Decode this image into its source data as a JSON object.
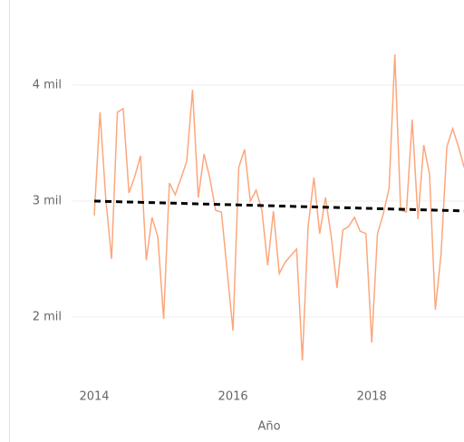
{
  "chart_data": {
    "type": "line",
    "x_label": "Año",
    "x": [
      2014.0,
      2014.083,
      2014.167,
      2014.25,
      2014.333,
      2014.417,
      2014.5,
      2014.583,
      2014.667,
      2014.75,
      2014.833,
      2014.917,
      2015.0,
      2015.083,
      2015.167,
      2015.25,
      2015.333,
      2015.417,
      2015.5,
      2015.583,
      2015.667,
      2015.75,
      2015.833,
      2015.917,
      2016.0,
      2016.083,
      2016.167,
      2016.25,
      2016.333,
      2016.417,
      2016.5,
      2016.583,
      2016.667,
      2016.75,
      2016.833,
      2016.917,
      2017.0,
      2017.083,
      2017.167,
      2017.25,
      2017.333,
      2017.417,
      2017.5,
      2017.583,
      2017.667,
      2017.75,
      2017.833,
      2017.917,
      2018.0,
      2018.083,
      2018.167,
      2018.25,
      2018.333,
      2018.417,
      2018.5,
      2018.583,
      2018.667,
      2018.75,
      2018.833,
      2018.917,
      2019.0,
      2019.083,
      2019.167,
      2019.25,
      2019.333
    ],
    "values": [
      2875,
      3766,
      3015,
      2500,
      3766,
      3797,
      3070,
      3210,
      3390,
      2490,
      2860,
      2690,
      1984,
      3156,
      3055,
      3195,
      3344,
      3960,
      3030,
      3406,
      3195,
      2920,
      2906,
      2390,
      1883,
      3290,
      3445,
      3000,
      3094,
      2920,
      2445,
      2914,
      2375,
      2470,
      2530,
      2586,
      1625,
      2780,
      3203,
      2719,
      3030,
      2690,
      2250,
      2750,
      2780,
      2860,
      2740,
      2720,
      1780,
      2720,
      2890,
      3110,
      4265,
      2920,
      2906,
      3703,
      2844,
      3484,
      3234,
      2063,
      2547,
      3469,
      3625,
      3469,
      3290
    ],
    "color": "#fca77c",
    "trend": {
      "x": [
        2014,
        2019.33
      ],
      "values": [
        3000,
        2915
      ],
      "color": "#000000"
    },
    "xlim": [
      2014,
      2019.33
    ],
    "xticks": [
      2014,
      2016,
      2018
    ],
    "ylim": [
      1500,
      4450
    ],
    "yticks": [
      {
        "value": 2000,
        "label": "2 mil"
      },
      {
        "value": 3000,
        "label": "3 mil"
      },
      {
        "value": 4000,
        "label": "4 mil"
      }
    ],
    "grid": true
  }
}
